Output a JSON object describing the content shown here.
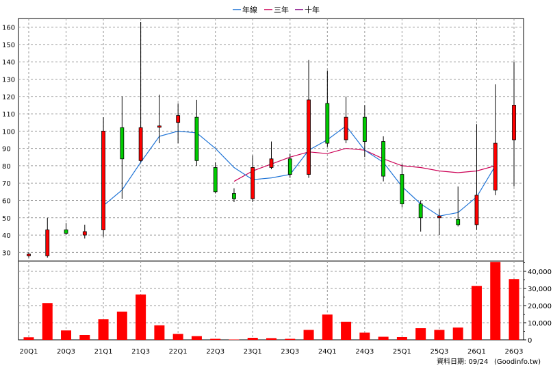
{
  "chart_data": {
    "type": "candlestick_with_volume",
    "x_tick_labels": [
      "20Q1",
      "20Q3",
      "21Q1",
      "21Q3",
      "22Q1",
      "22Q3",
      "23Q1",
      "23Q3",
      "24Q1",
      "24Q3",
      "25Q1",
      "25Q3",
      "26Q1",
      "26Q3"
    ],
    "price_axis": {
      "ylim": [
        25,
        165
      ],
      "ticks": [
        30,
        40,
        50,
        60,
        70,
        80,
        90,
        100,
        110,
        120,
        130,
        140,
        150,
        160
      ]
    },
    "volume_axis": {
      "ylim": [
        0,
        46000
      ],
      "ticks": [
        0,
        10000,
        20000,
        30000,
        40000
      ],
      "tick_labels": [
        "0",
        "10,000",
        "20,000",
        "30,000",
        "40,000"
      ]
    },
    "legend": [
      {
        "name": "年線",
        "color": "#1e73d6"
      },
      {
        "name": "三年",
        "color": "#cc0055"
      },
      {
        "name": "十年",
        "color": "#800080"
      }
    ],
    "quarters": [
      "20Q1",
      "20Q2",
      "20Q3",
      "20Q4",
      "21Q1",
      "21Q2",
      "21Q3",
      "21Q4",
      "22Q1",
      "22Q2",
      "22Q3",
      "22Q4",
      "23Q1",
      "23Q2",
      "23Q3",
      "23Q4",
      "24Q1",
      "24Q2",
      "24Q3",
      "24Q4",
      "25Q1",
      "25Q2",
      "25Q3",
      "25Q4",
      "26Q1",
      "26Q2",
      "26Q3"
    ],
    "candles": [
      {
        "q": "20Q1",
        "open": 28,
        "close": 29,
        "high": 30,
        "low": 27
      },
      {
        "q": "20Q2",
        "open": 28,
        "close": 43,
        "high": 50,
        "low": 27
      },
      {
        "q": "20Q3",
        "open": 43,
        "close": 41,
        "high": 47,
        "low": 40
      },
      {
        "q": "20Q4",
        "open": 40,
        "close": 42,
        "high": 46,
        "low": 38
      },
      {
        "q": "21Q1",
        "open": 43,
        "close": 100,
        "high": 108,
        "low": 39
      },
      {
        "q": "21Q2",
        "open": 102,
        "close": 84,
        "high": 120,
        "low": 61
      },
      {
        "q": "21Q3",
        "open": 83,
        "close": 102,
        "high": 163,
        "low": 82
      },
      {
        "q": "21Q4",
        "open": 103,
        "close": 103,
        "high": 121,
        "low": 93
      },
      {
        "q": "22Q1",
        "open": 105,
        "close": 109,
        "high": 116,
        "low": 93
      },
      {
        "q": "22Q2",
        "open": 108,
        "close": 83,
        "high": 118,
        "low": 80
      },
      {
        "q": "22Q3",
        "open": 79,
        "close": 65,
        "high": 82,
        "low": 64
      },
      {
        "q": "22Q4",
        "open": 64,
        "close": 61,
        "high": 67,
        "low": 59
      },
      {
        "q": "23Q1",
        "open": 61,
        "close": 79,
        "high": 86,
        "low": 59
      },
      {
        "q": "23Q2",
        "open": 79,
        "close": 84,
        "high": 94,
        "low": 78
      },
      {
        "q": "23Q3",
        "open": 84,
        "close": 75,
        "high": 87,
        "low": 73
      },
      {
        "q": "23Q4",
        "open": 75,
        "close": 118,
        "high": 141,
        "low": 73
      },
      {
        "q": "24Q1",
        "open": 116,
        "close": 93,
        "high": 135,
        "low": 91
      },
      {
        "q": "24Q2",
        "open": 95,
        "close": 108,
        "high": 120,
        "low": 93
      },
      {
        "q": "24Q3",
        "open": 108,
        "close": 94,
        "high": 115,
        "low": 85
      },
      {
        "q": "24Q4",
        "open": 94,
        "close": 74,
        "high": 97,
        "low": 71
      },
      {
        "q": "25Q1",
        "open": 75,
        "close": 58,
        "high": 81,
        "low": 56
      },
      {
        "q": "25Q2",
        "open": 58,
        "close": 50,
        "high": 60,
        "low": 42
      },
      {
        "q": "25Q3",
        "open": 50,
        "close": 51,
        "high": 55,
        "low": 40
      },
      {
        "q": "25Q4",
        "open": 49,
        "close": 46,
        "high": 68,
        "low": 45
      },
      {
        "q": "26Q1",
        "open": 46,
        "close": 63,
        "high": 104,
        "low": 43
      },
      {
        "q": "26Q2",
        "open": 66,
        "close": 93,
        "high": 127,
        "low": 63
      },
      {
        "q": "26Q3",
        "open": 95,
        "close": 115,
        "high": 140,
        "low": 68
      }
    ],
    "line_annual": [
      null,
      null,
      null,
      null,
      57,
      66,
      82,
      97,
      100,
      99,
      90,
      79,
      72,
      73,
      75,
      89,
      95,
      103,
      89,
      82,
      68,
      58,
      51,
      53,
      62,
      80,
      null
    ],
    "line_3yr": [
      null,
      null,
      null,
      null,
      null,
      null,
      null,
      null,
      null,
      null,
      null,
      71,
      77,
      81,
      85,
      88,
      87,
      90,
      89,
      84,
      80,
      79,
      77,
      76,
      77,
      80,
      null
    ],
    "volume": [
      1500,
      21500,
      5500,
      2800,
      12000,
      16500,
      26500,
      8500,
      3500,
      2200,
      600,
      200,
      1200,
      1000,
      600,
      5800,
      14800,
      10500,
      4200,
      1800,
      1600,
      6800,
      5800,
      7200,
      31500,
      45500,
      35500
    ],
    "footer": "資料日期: 09/24",
    "watermark": "(Goodinfo.tw)"
  }
}
